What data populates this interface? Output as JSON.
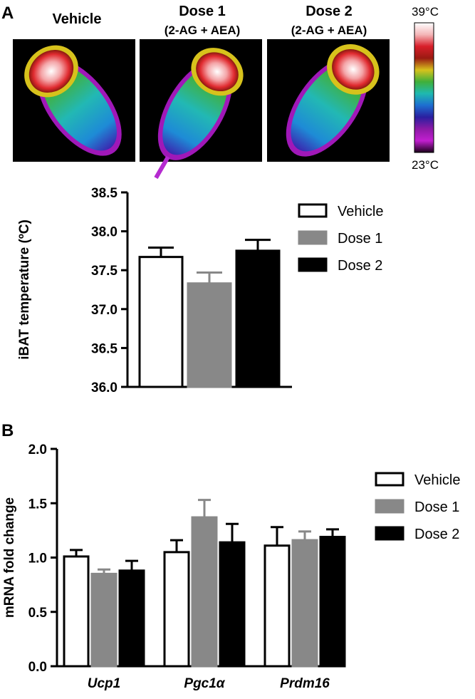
{
  "panel_a": {
    "letter": "A",
    "thermal": {
      "panels": [
        {
          "title": "Vehicle",
          "subtitle": ""
        },
        {
          "title": "Dose 1",
          "subtitle": "(2-AG + AEA)"
        },
        {
          "title": "Dose 2",
          "subtitle": "(2-AG + AEA)"
        }
      ],
      "scale_max_label": "39°C",
      "scale_min_label": "23°C",
      "scale_colors": [
        "#ffffff",
        "#f4b6b8",
        "#d81e2a",
        "#9a1a12",
        "#d7c21c",
        "#3fb03a",
        "#1fb9b0",
        "#1d6fd0",
        "#2a1fa0",
        "#8c1aa6",
        "#c21fd0",
        "#1a001a"
      ]
    }
  },
  "panel_b": {
    "letter": "B"
  },
  "colors": {
    "vehicle": "#ffffff",
    "dose1": "#888888",
    "dose2": "#000000",
    "axis": "#000000"
  },
  "chart_data": [
    {
      "type": "bar",
      "ylabel": "iBAT temperature (ºC)",
      "xlabel": "",
      "ylim": [
        36.0,
        38.5
      ],
      "yticks": [
        "36.0",
        "36.5",
        "37.0",
        "37.5",
        "38.0",
        "38.5"
      ],
      "legend_position": "right",
      "series": [
        {
          "name": "Vehicle",
          "values": [
            37.67
          ],
          "error": [
            0.12
          ]
        },
        {
          "name": "Dose 1",
          "values": [
            37.33
          ],
          "error": [
            0.14
          ]
        },
        {
          "name": "Dose 2",
          "values": [
            37.75
          ],
          "error": [
            0.14
          ]
        }
      ]
    },
    {
      "type": "bar",
      "ylabel": "mRNA fold change",
      "xlabel": "",
      "ylim": [
        0.0,
        2.0
      ],
      "yticks": [
        "0.0",
        "0.5",
        "1.0",
        "1.5",
        "2.0"
      ],
      "categories": [
        "Ucp1",
        "Pgc1α",
        "Prdm16"
      ],
      "legend_position": "right",
      "series": [
        {
          "name": "Vehicle",
          "values": [
            1.01,
            1.05,
            1.11
          ],
          "error": [
            0.06,
            0.11,
            0.17
          ]
        },
        {
          "name": "Dose 1",
          "values": [
            0.85,
            1.37,
            1.16
          ],
          "error": [
            0.04,
            0.16,
            0.08
          ]
        },
        {
          "name": "Dose 2",
          "values": [
            0.88,
            1.14,
            1.19
          ],
          "error": [
            0.09,
            0.17,
            0.07
          ]
        }
      ]
    }
  ]
}
